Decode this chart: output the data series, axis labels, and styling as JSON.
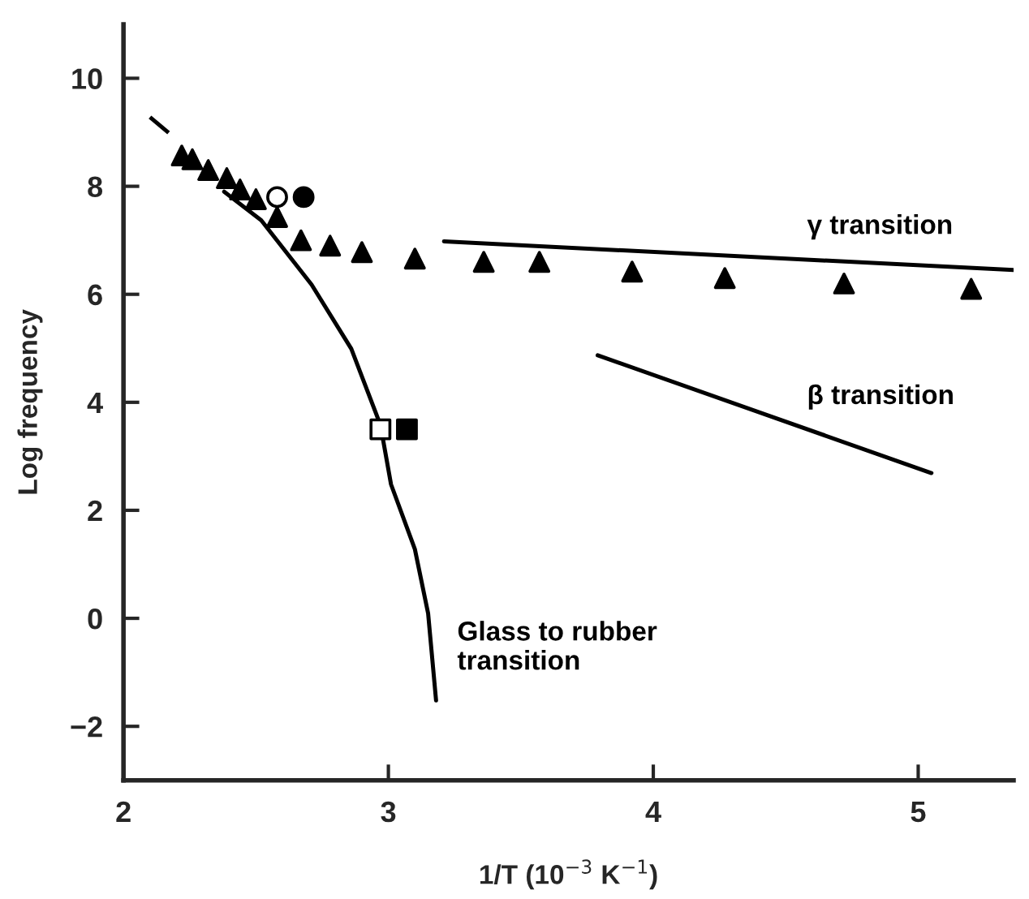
{
  "chart_data": {
    "type": "scatter",
    "xlabel": "1/T (10$^{−3}$ K$^{−1}$)",
    "ylabel": "Log frequency",
    "xlim": [
      2,
      5.36
    ],
    "ylim": [
      -3,
      11
    ],
    "xticks": [
      2,
      3,
      4,
      5
    ],
    "yticks": [
      {
        "value": -2,
        "label": "−2"
      },
      0,
      2,
      4,
      6,
      8,
      10
    ],
    "grid": false,
    "legend": false,
    "series": [
      {
        "marker": "triangle",
        "color": "#000000",
        "x": [
          2.22,
          2.26,
          2.32,
          2.39,
          2.44,
          2.5,
          2.58,
          2.67,
          2.78,
          2.9,
          3.1,
          3.36,
          3.57,
          3.92,
          4.27,
          4.72,
          5.2
        ],
        "values": [
          8.57,
          8.5,
          8.3,
          8.15,
          7.94,
          7.76,
          7.43,
          7.0,
          6.9,
          6.78,
          6.66,
          6.6,
          6.6,
          6.42,
          6.3,
          6.2,
          6.1
        ]
      },
      {
        "marker": "circle",
        "color": "#ffffff",
        "x": [
          2.58
        ],
        "values": [
          7.8
        ]
      },
      {
        "marker": "circle",
        "color": "#000000",
        "x": [
          2.68
        ],
        "values": [
          7.8
        ]
      },
      {
        "marker": "square",
        "color": "#ffffff",
        "x": [
          2.97
        ],
        "values": [
          3.5
        ]
      },
      {
        "marker": "square",
        "color": "#000000",
        "x": [
          3.07
        ],
        "values": [
          3.5
        ]
      },
      {
        "type": "line",
        "line_style": "dashed",
        "color": "#000000",
        "x": [
          2.1,
          2.18
        ],
        "values": [
          9.28,
          8.95
        ]
      },
      {
        "type": "line",
        "name": "Glass to rubber\ntransition",
        "line_style": "solid",
        "color": "#000000",
        "x": [
          2.38,
          2.52,
          2.71,
          2.86,
          2.97,
          3.01,
          3.1,
          3.15,
          3.18
        ],
        "values": [
          7.9,
          7.37,
          6.18,
          4.99,
          3.58,
          2.48,
          1.28,
          0.09,
          -1.52
        ]
      },
      {
        "type": "line",
        "name": "γ transition",
        "line_style": "solid",
        "color": "#000000",
        "x": [
          3.21,
          5.36
        ],
        "values": [
          6.98,
          6.45
        ]
      },
      {
        "type": "line",
        "name": "β transition",
        "line_style": "solid",
        "color": "#000000",
        "x": [
          3.79,
          5.05
        ],
        "values": [
          4.87,
          2.69
        ]
      }
    ]
  }
}
